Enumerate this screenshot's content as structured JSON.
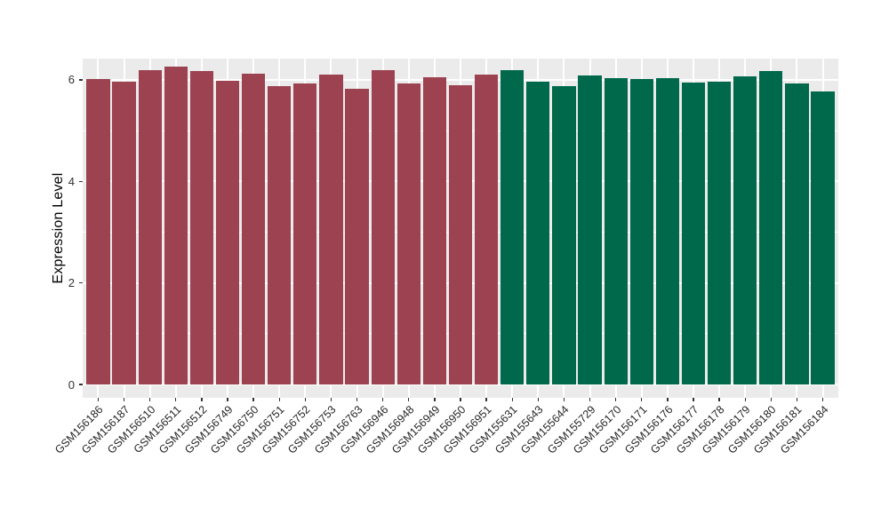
{
  "chart_data": {
    "type": "bar",
    "title": "",
    "xlabel": "",
    "ylabel": "Expression Level",
    "categories": [
      "GSM156186",
      "GSM156187",
      "GSM156510",
      "GSM156511",
      "GSM156512",
      "GSM156749",
      "GSM156750",
      "GSM156751",
      "GSM156752",
      "GSM156753",
      "GSM156763",
      "GSM156946",
      "GSM156948",
      "GSM156949",
      "GSM156950",
      "GSM156951",
      "GSM155631",
      "GSM155643",
      "GSM155644",
      "GSM155729",
      "GSM156170",
      "GSM156171",
      "GSM156176",
      "GSM156177",
      "GSM156178",
      "GSM156179",
      "GSM156180",
      "GSM156181",
      "GSM156184"
    ],
    "values": [
      6.01,
      5.97,
      6.19,
      6.26,
      6.17,
      5.98,
      6.13,
      5.88,
      5.93,
      6.1,
      5.83,
      6.19,
      5.93,
      6.05,
      5.9,
      6.1,
      6.2,
      5.96,
      5.88,
      6.09,
      6.04,
      6.02,
      6.04,
      5.95,
      5.96,
      6.07,
      6.18,
      5.93,
      5.78
    ],
    "groups": [
      "group1",
      "group1",
      "group1",
      "group1",
      "group1",
      "group1",
      "group1",
      "group1",
      "group1",
      "group1",
      "group1",
      "group1",
      "group1",
      "group1",
      "group1",
      "group1",
      "group2",
      "group2",
      "group2",
      "group2",
      "group2",
      "group2",
      "group2",
      "group2",
      "group2",
      "group2",
      "group2",
      "group2",
      "group2"
    ],
    "group_colors": {
      "group1": "#9C4251",
      "group2": "#00684B"
    },
    "yticks": [
      0,
      2,
      4,
      6
    ],
    "ytick_labels": [
      "0",
      "2",
      "4",
      "6"
    ],
    "minor_yticks": [
      1,
      3,
      5
    ],
    "ylim": [
      -0.26,
      6.42
    ],
    "legend": "none",
    "grid": "on",
    "panel_background": "#EBEBEB",
    "gridline_color": "#FFFFFF",
    "axis_text_color": "#333333",
    "bar_width_fraction": 0.9,
    "x_label_rotation_deg": 45
  }
}
